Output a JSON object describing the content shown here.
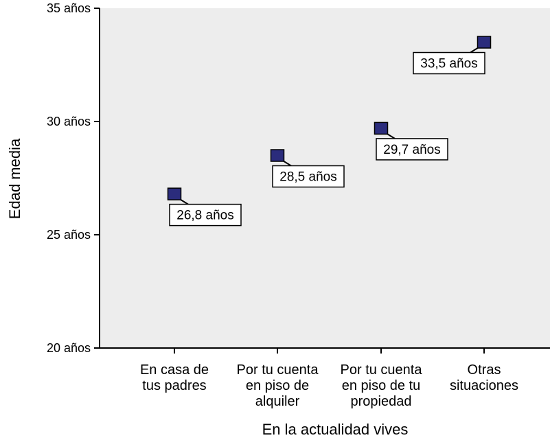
{
  "chart_data": {
    "type": "scatter",
    "categories": [
      [
        "En casa de",
        "tus padres"
      ],
      [
        "Por tu cuenta",
        "en piso de",
        "alquiler"
      ],
      [
        "Por tu cuenta",
        "en piso de tu",
        "propiedad"
      ],
      [
        "Otras",
        "situaciones"
      ]
    ],
    "values": [
      26.8,
      28.5,
      29.7,
      33.5
    ],
    "data_labels": [
      "26,8 años",
      "28,5 años",
      "29,7 años",
      "33,5 años"
    ],
    "xlabel": "En la actualidad vives",
    "ylabel": "Edad media",
    "ylim": [
      20,
      35
    ],
    "yticks": [
      20,
      25,
      30,
      35
    ],
    "ytick_labels": [
      "20 años",
      "25 años",
      "30 años",
      "35 años"
    ],
    "grid": false,
    "marker": "square",
    "colors": {
      "plot_background": "#ededed",
      "marker_fill": "#2b2c7c",
      "marker_stroke": "#000000",
      "axis": "#000000"
    }
  }
}
